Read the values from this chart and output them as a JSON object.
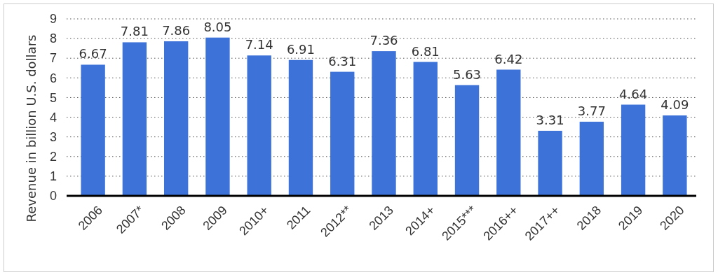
{
  "chart_data": {
    "type": "bar",
    "ylabel": "Revenue in billion U.S. dollars",
    "categories": [
      "2006",
      "2007*",
      "2008",
      "2009",
      "2010+",
      "2011",
      "2012**",
      "2013",
      "2014+",
      "2015***",
      "2016++",
      "2017++",
      "2018",
      "2019",
      "2020"
    ],
    "values": [
      6.67,
      7.81,
      7.86,
      8.05,
      7.14,
      6.91,
      6.31,
      7.36,
      6.81,
      5.63,
      6.42,
      3.31,
      3.77,
      4.64,
      4.09
    ],
    "color": "#3d72d9",
    "ylim": [
      0,
      9
    ],
    "yticks": [
      0,
      1,
      2,
      3,
      4,
      5,
      6,
      7,
      8,
      9
    ],
    "grid": "y",
    "data_labels": true
  }
}
